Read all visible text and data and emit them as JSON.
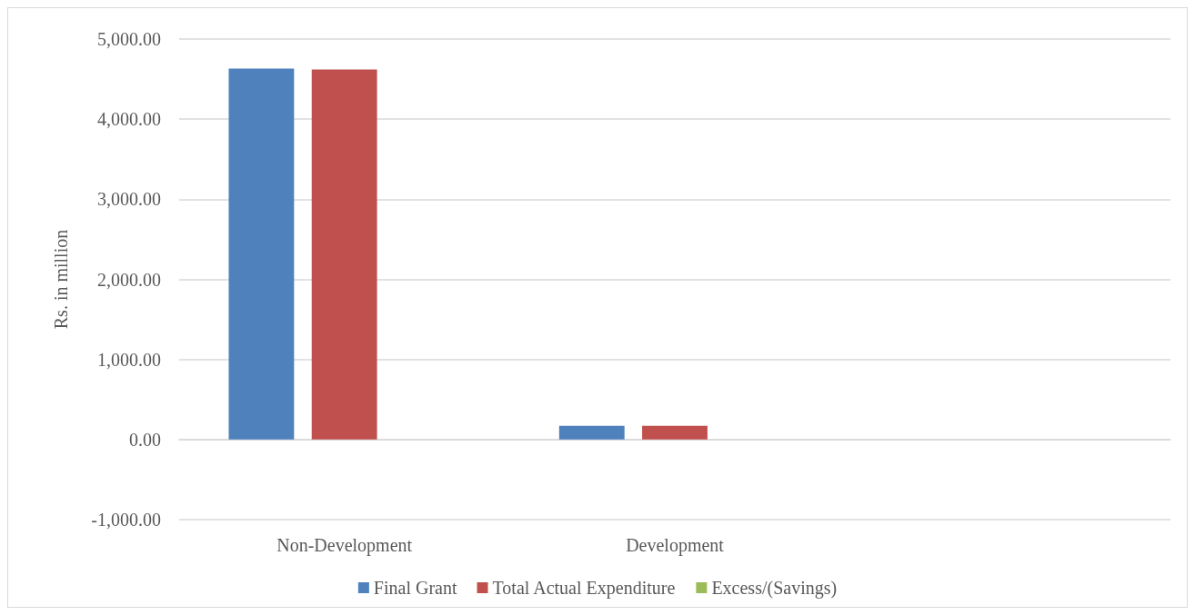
{
  "chart_data": {
    "type": "bar",
    "ylabel": "Rs. in million",
    "categories": [
      "Non-Development",
      "Development",
      null
    ],
    "series": [
      {
        "name": "Final Grant",
        "color": "#4f81bd",
        "values": [
          4630,
          170,
          null
        ]
      },
      {
        "name": "Total Actual Expenditure",
        "color": "#c0504d",
        "values": [
          4620,
          170,
          null
        ]
      },
      {
        "name": "Excess/(Savings)",
        "color": "#9bbb59",
        "values": [
          0,
          0,
          null
        ]
      }
    ],
    "ylim": [
      -1000,
      5000
    ],
    "yticks": [
      {
        "value": -1000,
        "label": "-1,000.00"
      },
      {
        "value": 0,
        "label": "0.00"
      },
      {
        "value": 1000,
        "label": "1,000.00"
      },
      {
        "value": 2000,
        "label": "2,000.00"
      },
      {
        "value": 3000,
        "label": "3,000.00"
      },
      {
        "value": 4000,
        "label": "4,000.00"
      },
      {
        "value": 5000,
        "label": "5,000.00"
      }
    ],
    "grid": "y",
    "legend": "bottom"
  }
}
